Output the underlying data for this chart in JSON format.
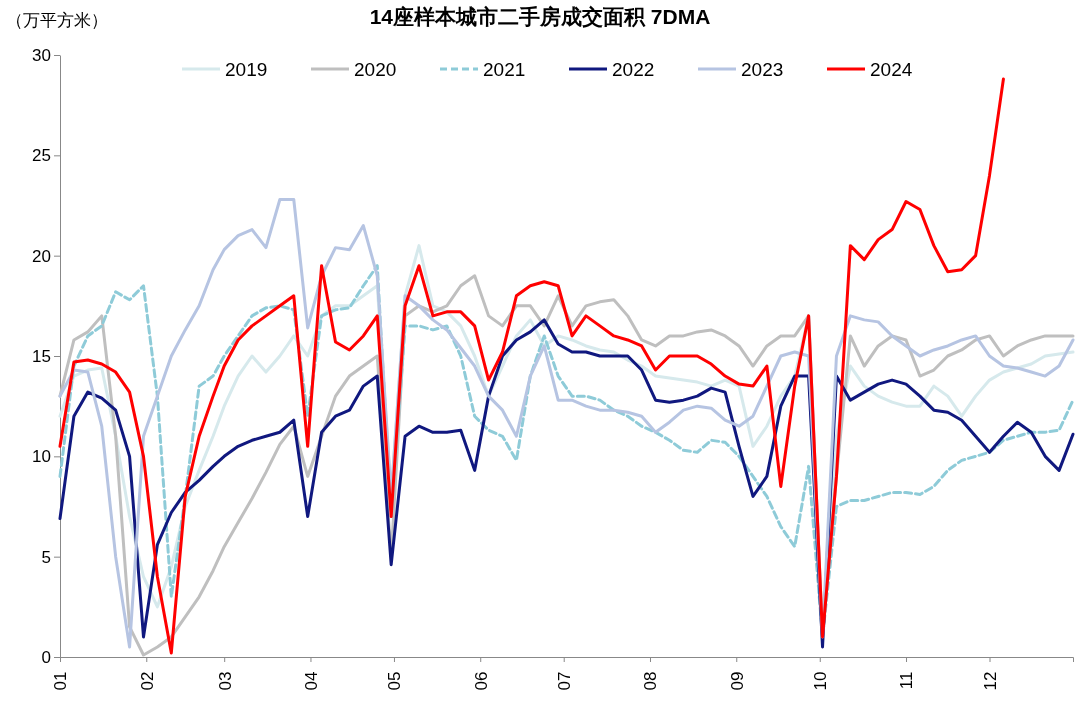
{
  "chart_data": {
    "type": "line",
    "title": "14座样本城市二手房成交面积 7DMA",
    "ylabel": "（万平方米）",
    "x": [
      "--01-01",
      "--01-06",
      "--01-11",
      "--01-16",
      "--01-21",
      "--01-26",
      "--01-31",
      "--02-05",
      "--02-10",
      "--02-15",
      "--02-20",
      "--02-25",
      "--03-01",
      "--03-06",
      "--03-11",
      "--03-16",
      "--03-21",
      "--03-26",
      "--03-31",
      "--04-05",
      "--04-10",
      "--04-15",
      "--04-20",
      "--04-25",
      "--04-30",
      "--05-05",
      "--05-10",
      "--05-15",
      "--05-20",
      "--05-25",
      "--05-30",
      "--06-04",
      "--06-09",
      "--06-14",
      "--06-19",
      "--06-24",
      "--06-29",
      "--07-04",
      "--07-09",
      "--07-14",
      "--07-19",
      "--07-24",
      "--07-29",
      "--08-03",
      "--08-08",
      "--08-13",
      "--08-18",
      "--08-23",
      "--08-28",
      "--09-02",
      "--09-07",
      "--09-12",
      "--09-17",
      "--09-22",
      "--09-27",
      "--10-02",
      "--10-07",
      "--10-12",
      "--10-17",
      "--10-22",
      "--10-27",
      "--11-01",
      "--11-06",
      "--11-11",
      "--11-16",
      "--11-21",
      "--11-26",
      "--12-01",
      "--12-06",
      "--12-11",
      "--12-16",
      "--12-21",
      "--12-26",
      "--12-31"
    ],
    "xlim": [
      "--01-01",
      "--12-31"
    ],
    "xticks": [
      {
        "value": "--01-01",
        "label": "01"
      },
      {
        "value": "--02-01",
        "label": "02"
      },
      {
        "value": "--03-01",
        "label": "03"
      },
      {
        "value": "--04-01",
        "label": "04"
      },
      {
        "value": "--05-01",
        "label": "05"
      },
      {
        "value": "--06-01",
        "label": "06"
      },
      {
        "value": "--07-01",
        "label": "07"
      },
      {
        "value": "--08-01",
        "label": "08"
      },
      {
        "value": "--09-01",
        "label": "09"
      },
      {
        "value": "--10-01",
        "label": "10"
      },
      {
        "value": "--11-01",
        "label": "11"
      },
      {
        "value": "--12-01",
        "label": "12"
      }
    ],
    "ylim": [
      0,
      30
    ],
    "yticks": [
      0,
      5,
      10,
      15,
      20,
      25,
      30
    ],
    "grid": false,
    "legend": "top",
    "marker": "none",
    "line_style": "solid",
    "series": [
      {
        "name": "2019",
        "color": "#d6e9ec",
        "values": [
          12,
          14,
          14.3,
          14.4,
          11,
          7,
          4,
          2.5,
          4.5,
          7.5,
          9.3,
          11,
          12.5,
          14,
          15,
          14.2,
          15,
          16,
          15,
          17,
          17.5,
          17.5,
          18,
          18.5,
          8,
          18,
          20.5,
          17.5,
          17.2,
          16.5,
          15,
          13,
          14.5,
          16,
          16.8,
          15.5,
          16,
          15.8,
          15.5,
          15.3,
          15.2,
          14.8,
          14.5,
          14,
          13.9,
          13.8,
          13.7,
          13.5,
          13.8,
          13.5,
          10.5,
          11.5,
          13,
          14,
          17,
          1,
          11,
          14.5,
          13.5,
          13,
          12.7,
          12.5,
          12.5,
          13.5,
          13,
          12,
          13,
          13.8,
          14.2,
          14.4,
          14.6,
          15,
          15.1,
          15.2
        ]
      },
      {
        "name": "2020",
        "color": "#bfbfbf",
        "values": [
          13,
          15.8,
          16.2,
          17,
          11,
          1.5,
          0.1,
          0.5,
          1,
          2,
          3,
          4.3,
          5.5,
          6.7,
          7.9,
          9.2,
          10.6,
          11.5,
          9,
          11,
          13,
          14,
          14.5,
          15,
          5,
          17,
          17.5,
          17.2,
          17.5,
          18.5,
          19,
          17,
          16.5,
          17.5,
          17.5,
          16.5,
          18,
          16.5,
          17.5,
          17.7,
          17.8,
          17,
          15.8,
          15.5,
          16,
          16,
          16.2,
          16.3,
          16,
          15.5,
          14.5,
          15.5,
          16,
          16,
          17,
          1,
          9,
          16,
          14.5,
          15.5,
          16,
          15.8,
          14,
          14.3,
          15,
          15.3,
          15.8,
          16,
          15,
          15.5,
          15.8,
          16,
          16,
          16
        ]
      },
      {
        "name": "2021",
        "color": "#8ecbd8",
        "line_style": "dashed",
        "values": [
          9,
          14.5,
          16,
          16.5,
          18.2,
          17.8,
          18.5,
          13,
          3,
          8,
          13.5,
          14,
          15,
          16,
          17,
          17.4,
          17.5,
          17.3,
          12,
          17,
          17.3,
          17.4,
          18.5,
          19.5,
          7,
          16.5,
          16.5,
          16.3,
          16.5,
          15,
          12,
          11.3,
          11,
          9.8,
          14,
          16,
          14,
          13,
          13,
          12.8,
          12.3,
          12,
          11.5,
          11.2,
          10.8,
          10.3,
          10.2,
          10.8,
          10.7,
          10,
          9,
          8,
          6.5,
          5.5,
          9.5,
          1,
          7.5,
          7.8,
          7.8,
          8,
          8.2,
          8.2,
          8.1,
          8.5,
          9.3,
          9.8,
          10,
          10.2,
          10.8,
          11,
          11.2,
          11.2,
          11.3,
          12.8
        ]
      },
      {
        "name": "2022",
        "color": "#10187f",
        "values": [
          6.9,
          12,
          13.2,
          12.9,
          12.3,
          10,
          1,
          5.6,
          7.2,
          8.2,
          8.8,
          9.5,
          10,
          10.5,
          10.8,
          11,
          11.2,
          11.8,
          7,
          11.2,
          12,
          12.3,
          13.5,
          14,
          4.6,
          11,
          11.5,
          11.2,
          11.2,
          11.3,
          9.3,
          13,
          15,
          15.8,
          16.2,
          16.8,
          15.6,
          15.2,
          15.2,
          15,
          15,
          15,
          14.3,
          12.8,
          12.7,
          12.8,
          13,
          13.4,
          13.2,
          10.5,
          8,
          9,
          12.5,
          14,
          14,
          0.5,
          14,
          12.8,
          13.2,
          13.6,
          13.8,
          13.6,
          13,
          12.3,
          12.2,
          11.8,
          11,
          10.2,
          11,
          11.7,
          11.2,
          10,
          9.3,
          11.1
        ]
      },
      {
        "name": "2023",
        "color": "#b6c4e2",
        "values": [
          13,
          14.3,
          14.2,
          11.5,
          5,
          0.5,
          11,
          13,
          15,
          16.3,
          17.5,
          19.3,
          20.3,
          21,
          21.3,
          20.4,
          22.8,
          22.8,
          16.4,
          19,
          20.4,
          20.3,
          21.5,
          19,
          8,
          18,
          17.5,
          16.8,
          16.3,
          15.4,
          14.5,
          13,
          12.3,
          11,
          14,
          15.5,
          12.8,
          12.8,
          12.5,
          12.3,
          12.3,
          12.2,
          12,
          11.2,
          11.7,
          12.3,
          12.5,
          12.4,
          11.8,
          11.5,
          12,
          13.5,
          15,
          15.2,
          15,
          1,
          15,
          17,
          16.8,
          16.7,
          16,
          15.5,
          15,
          15.3,
          15.5,
          15.8,
          16,
          15,
          14.5,
          14.4,
          14.2,
          14,
          14.5,
          15.8
        ]
      },
      {
        "name": "2024",
        "color": "#ff0000",
        "values": [
          10.5,
          14.7,
          14.8,
          14.6,
          14.2,
          13.2,
          10,
          4,
          0.2,
          8,
          11,
          13,
          14.5,
          15.8,
          16.5,
          17,
          17.5,
          18,
          10.5,
          19.5,
          15.7,
          15.3,
          16,
          17,
          7,
          17.5,
          19.5,
          17,
          17.2,
          17.2,
          16.5,
          13.8,
          15.2,
          18,
          18.5,
          18.7,
          18.5,
          16,
          17,
          16.5,
          16,
          15.8,
          15.5,
          14.3,
          15,
          15,
          15,
          14.6,
          14,
          13.6,
          13.5,
          14.5,
          8.5,
          13.5,
          17,
          1,
          9,
          20.5,
          19.8,
          20.8,
          21.3,
          22.7,
          22.3,
          20.5,
          19.2,
          19.3,
          20,
          24,
          28.8,
          null,
          null,
          null,
          null,
          null
        ]
      }
    ]
  }
}
